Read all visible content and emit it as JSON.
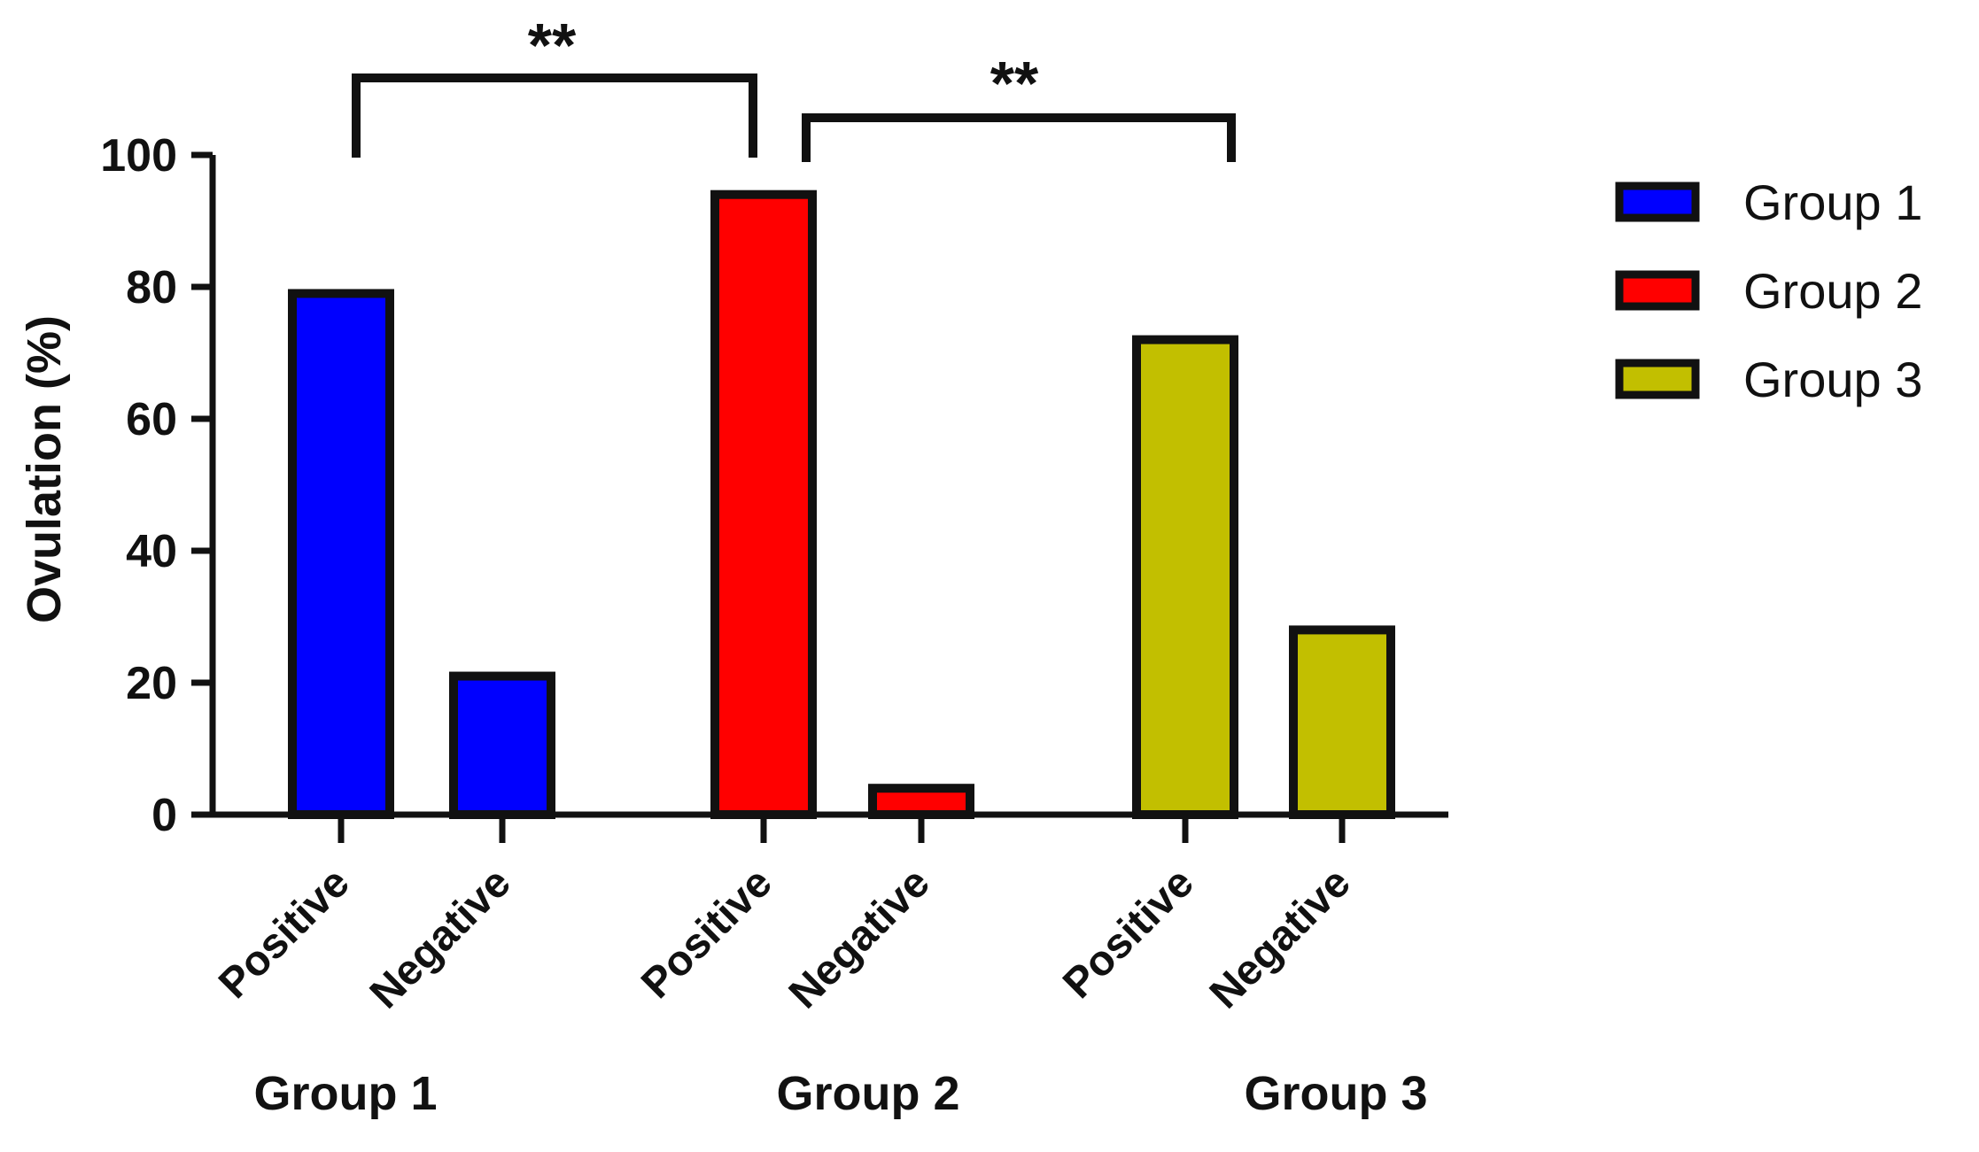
{
  "chart_data": {
    "type": "bar",
    "title": "",
    "xlabel": "",
    "ylabel": "Ovulation (%)",
    "ylim": [
      0,
      100
    ],
    "yticks": [
      "0",
      "20",
      "40",
      "60",
      "80",
      "100"
    ],
    "grid": false,
    "legend_position": "right",
    "categories": [
      "Positive",
      "Negative",
      "Positive",
      "Negative",
      "Positive",
      "Negative"
    ],
    "groups": [
      {
        "name": "Group 1",
        "color": "#0000ff",
        "categories": [
          "Positive",
          "Negative"
        ],
        "values": [
          79,
          21
        ]
      },
      {
        "name": "Group 2",
        "color": "#ff0000",
        "categories": [
          "Positive",
          "Negative"
        ],
        "values": [
          94,
          4
        ]
      },
      {
        "name": "Group 3",
        "color": "#c2bf00",
        "categories": [
          "Positive",
          "Negative"
        ],
        "values": [
          72,
          28
        ]
      }
    ],
    "legend": [
      {
        "label": "Group 1",
        "color": "#0000ff"
      },
      {
        "label": "Group 2",
        "color": "#ff0000"
      },
      {
        "label": "Group 3",
        "color": "#c2bf00"
      }
    ],
    "annotations": [
      {
        "label": "**",
        "from": "Group 1 Positive",
        "to": "Group 2 Positive"
      },
      {
        "label": "**",
        "from": "Group 2 Positive",
        "to": "Group 3 Positive"
      }
    ]
  }
}
